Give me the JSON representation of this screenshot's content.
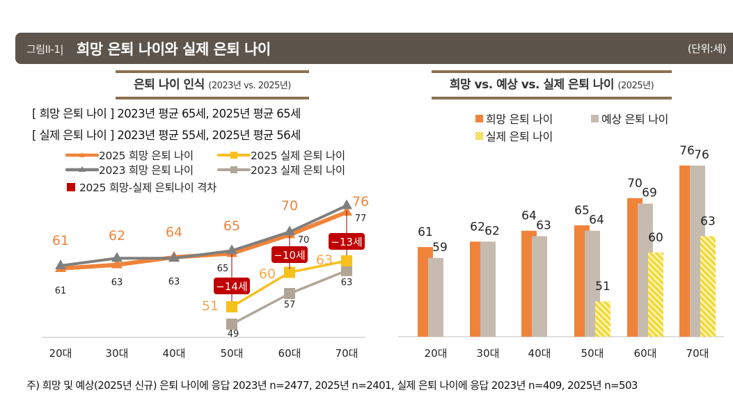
{
  "header": {
    "figure_label": "그림II-1|",
    "title": "희망 은퇴 나이와 실제 은퇴 나이",
    "unit": "(단위:세)"
  },
  "left_panel": {
    "subtitle": "은퇴 나이 인식",
    "subtitle_small": "(2023년 vs. 2025년)",
    "summary": [
      "[ 희망 은퇴 나이 ] 2023년 평균 65세, 2025년 평균 65세",
      "[ 실제 은퇴 나이 ] 2023년 평균 55세, 2025년 평균 56세"
    ],
    "legend": [
      "2025 희망 은퇴 나이",
      "2025 실제 은퇴 나이",
      "2023 희망 은퇴 나이",
      "2023 실제 은퇴 나이",
      "2025 희망-실제 은퇴나이 격차"
    ]
  },
  "right_panel": {
    "subtitle": "희망 vs. 예상 vs. 실제 은퇴 나이",
    "subtitle_small": "(2025년)",
    "legend": [
      "희망 은퇴 나이",
      "예상 은퇴 나이",
      "실제 은퇴 나이"
    ]
  },
  "colors": {
    "header_bg": "#5d554b",
    "rule": "#8a7152",
    "hope_2025": "#f0833a",
    "hope_2023": "#7f7f7f",
    "actual_2025": "#f7c01c",
    "actual_2023": "#b1a597",
    "gap_badge": "#c00000",
    "bar_hope": "#f0833a",
    "bar_expected": "#c7bbb0",
    "bar_actual": "#f5e15a"
  },
  "footnote": "주) 희망 및 예상(2025년 신규) 은퇴 나이에 응답 2023년 n=2477, 2025년 n=2401, 실제 은퇴 나이에 응답 2023년 n=409, 2025년 n=503",
  "chart_data": [
    {
      "type": "line",
      "title": "은퇴 나이 인식 (2023년 vs. 2025년)",
      "categories": [
        "20대",
        "30대",
        "40대",
        "50대",
        "60대",
        "70대"
      ],
      "series": [
        {
          "name": "2025 희망 은퇴 나이",
          "values": [
            61,
            62,
            64,
            65,
            70,
            76
          ]
        },
        {
          "name": "2023 희망 은퇴 나이",
          "values": [
            61,
            63,
            63,
            65,
            70,
            77
          ]
        },
        {
          "name": "2025 실제 은퇴 나이",
          "values": [
            null,
            null,
            null,
            51,
            60,
            63
          ]
        },
        {
          "name": "2023 실제 은퇴 나이",
          "values": [
            null,
            null,
            null,
            49,
            57,
            63
          ]
        }
      ],
      "gap_annotations": [
        {
          "category": "50대",
          "label": "−14세"
        },
        {
          "category": "60대",
          "label": "−10세"
        },
        {
          "category": "70대",
          "label": "−13세"
        }
      ],
      "xlabel": "",
      "ylabel": "",
      "ylim": [
        45,
        80
      ],
      "grid": false,
      "legend_position": "top-left"
    },
    {
      "type": "bar",
      "title": "희망 vs. 예상 vs. 실제 은퇴 나이 (2025년)",
      "categories": [
        "20대",
        "30대",
        "40대",
        "50대",
        "60대",
        "70대"
      ],
      "series": [
        {
          "name": "희망 은퇴 나이",
          "values": [
            61,
            62,
            64,
            65,
            70,
            76
          ]
        },
        {
          "name": "예상 은퇴 나이",
          "values": [
            59,
            62,
            63,
            64,
            69,
            76
          ]
        },
        {
          "name": "실제 은퇴 나이",
          "values": [
            null,
            null,
            null,
            51,
            60,
            63
          ]
        }
      ],
      "xlabel": "",
      "ylabel": "",
      "ylim": [
        44.5,
        80
      ],
      "grid": false,
      "legend_position": "top"
    }
  ]
}
